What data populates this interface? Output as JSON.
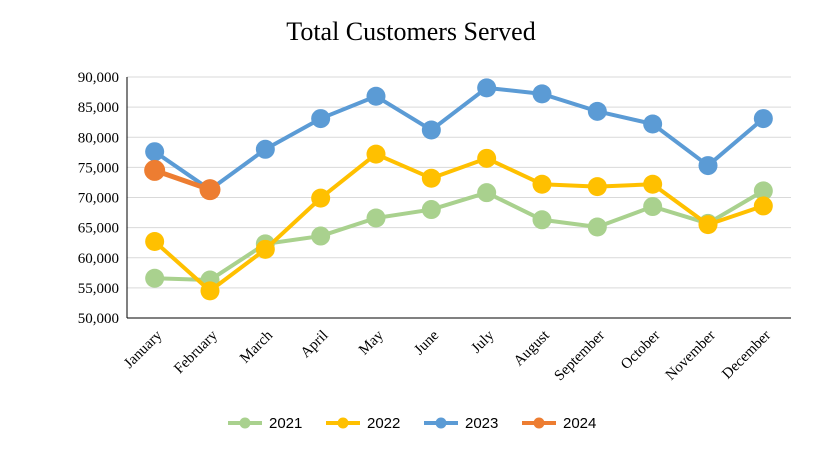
{
  "chart_data": {
    "type": "line",
    "title": "Total Customers Served",
    "xlabel": "",
    "ylabel": "",
    "categories": [
      "January",
      "February",
      "March",
      "April",
      "May",
      "June",
      "July",
      "August",
      "September",
      "October",
      "November",
      "December"
    ],
    "ylim": [
      50000,
      90000
    ],
    "yticks": [
      "50,000",
      "55,000",
      "60,000",
      "65,000",
      "70,000",
      "75,000",
      "80,000",
      "85,000",
      "90,000"
    ],
    "grid": true,
    "legend_position": "bottom",
    "series": [
      {
        "name": "2021",
        "color": "#a9d18e",
        "values": [
          56600,
          56300,
          62300,
          63600,
          66600,
          68000,
          70800,
          66300,
          65100,
          68500,
          65700,
          71100
        ]
      },
      {
        "name": "2022",
        "color": "#ffc000",
        "values": [
          62700,
          54500,
          61400,
          69900,
          77200,
          73200,
          76500,
          72200,
          71800,
          72200,
          65500,
          68600
        ]
      },
      {
        "name": "2023",
        "color": "#5b9bd5",
        "values": [
          77600,
          71300,
          78000,
          83100,
          86800,
          81200,
          88200,
          87200,
          84300,
          82200,
          75300,
          83100
        ]
      },
      {
        "name": "2024",
        "color": "#ed7d31",
        "values": [
          74500,
          71300,
          null,
          null,
          null,
          null,
          null,
          null,
          null,
          null,
          null,
          null
        ]
      }
    ]
  }
}
